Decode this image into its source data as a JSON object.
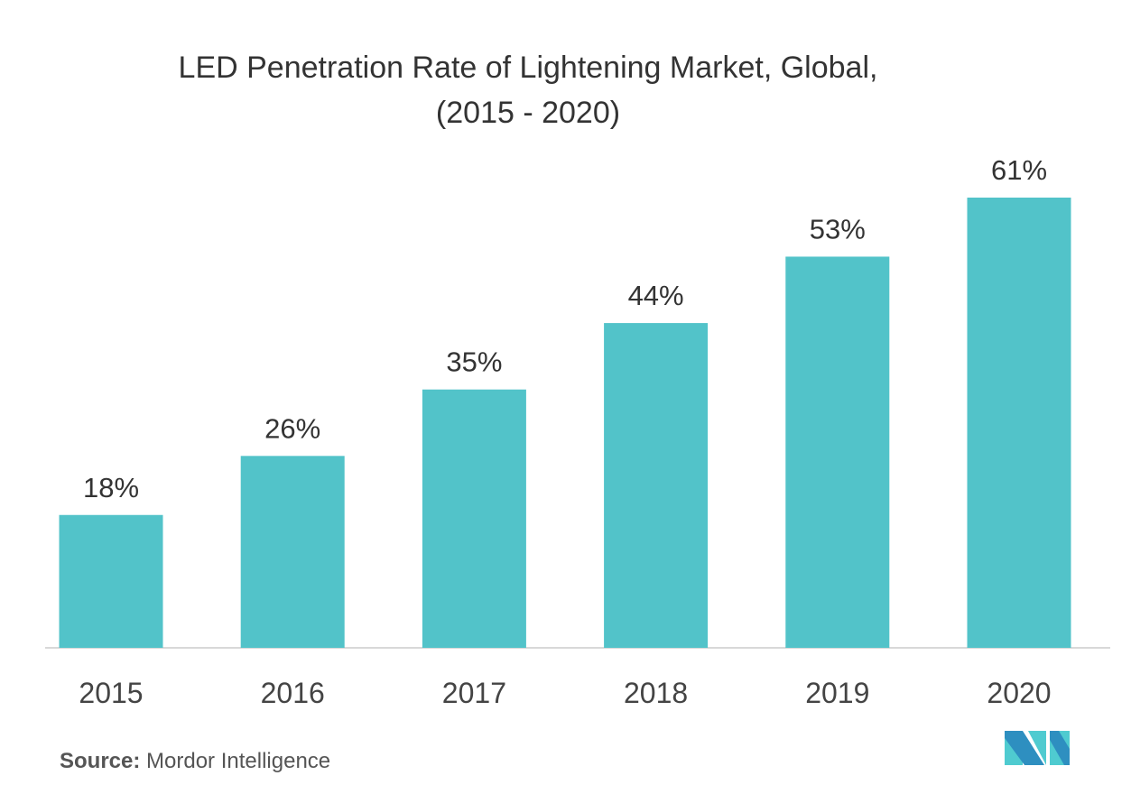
{
  "chart_data": {
    "type": "bar",
    "title": "LED Penetration Rate of Lightening Market, Global,",
    "subtitle": "(2015 - 2020)",
    "categories": [
      "2015",
      "2016",
      "2017",
      "2018",
      "2019",
      "2020"
    ],
    "values": [
      18,
      26,
      35,
      44,
      53,
      61
    ],
    "data_labels": [
      "18%",
      "26%",
      "35%",
      "44%",
      "53%",
      "61%"
    ],
    "unit": "%",
    "ylim": [
      0,
      61
    ],
    "grid": false,
    "bar_color": "#52c3c9"
  },
  "footer": {
    "source_label": "Source:",
    "source_text": "Mordor Intelligence"
  },
  "logo": {
    "colors": [
      "#2e8fc0",
      "#4fcbd0"
    ]
  }
}
